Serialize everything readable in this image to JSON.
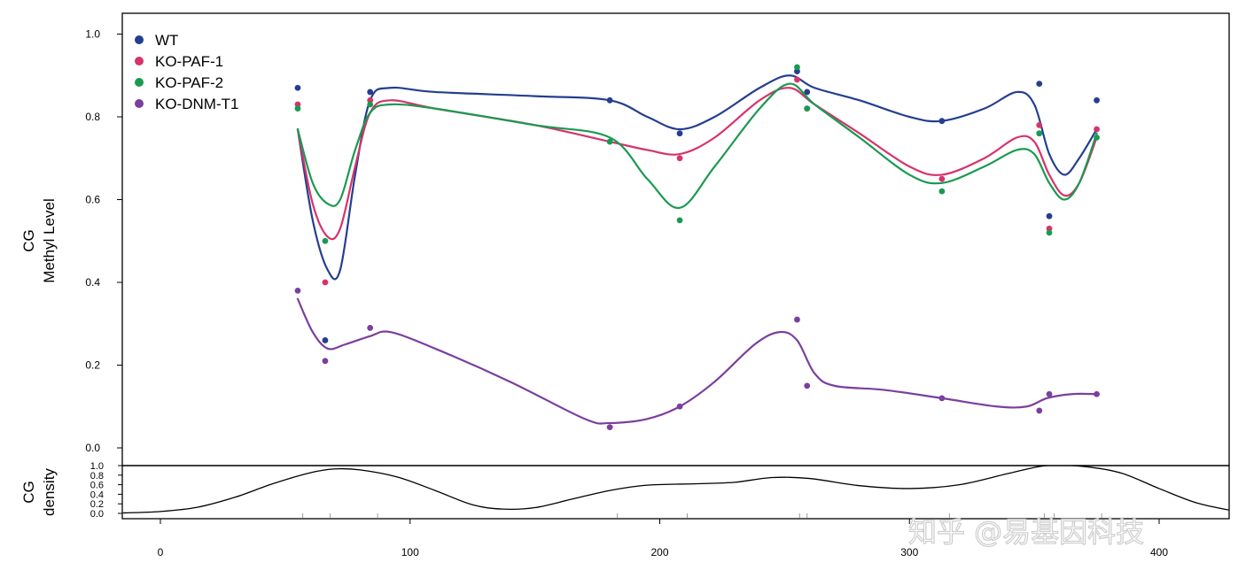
{
  "watermark": "知乎 @易基因科技",
  "chart_data": [
    {
      "type": "scatter",
      "ylabel_line1": "CG",
      "ylabel_line2": "Methyl Level",
      "ylim": [
        0.0,
        1.0
      ],
      "yticks": [
        "0.0",
        "0.2",
        "0.4",
        "0.6",
        "0.8",
        "1.0"
      ],
      "legend_position": "top-left",
      "series": [
        {
          "name": "WT",
          "color": "#243f8f",
          "points": [
            [
              55,
              0.87
            ],
            [
              66,
              0.26
            ],
            [
              84,
              0.86
            ],
            [
              180,
              0.84
            ],
            [
              208,
              0.76
            ],
            [
              255,
              0.91
            ],
            [
              259,
              0.86
            ],
            [
              313,
              0.79
            ],
            [
              352,
              0.88
            ],
            [
              356,
              0.56
            ],
            [
              375,
              0.84
            ]
          ],
          "curve": [
            [
              55,
              0.77
            ],
            [
              61,
              0.55
            ],
            [
              67,
              0.43
            ],
            [
              72,
              0.43
            ],
            [
              78,
              0.66
            ],
            [
              84,
              0.84
            ],
            [
              92,
              0.87
            ],
            [
              110,
              0.86
            ],
            [
              150,
              0.85
            ],
            [
              180,
              0.84
            ],
            [
              195,
              0.8
            ],
            [
              208,
              0.77
            ],
            [
              222,
              0.8
            ],
            [
              240,
              0.87
            ],
            [
              252,
              0.9
            ],
            [
              262,
              0.87
            ],
            [
              280,
              0.84
            ],
            [
              300,
              0.8
            ],
            [
              313,
              0.79
            ],
            [
              330,
              0.82
            ],
            [
              343,
              0.86
            ],
            [
              350,
              0.83
            ],
            [
              356,
              0.71
            ],
            [
              362,
              0.66
            ],
            [
              368,
              0.7
            ],
            [
              375,
              0.77
            ]
          ]
        },
        {
          "name": "KO-PAF-1",
          "color": "#d6336c",
          "points": [
            [
              55,
              0.83
            ],
            [
              66,
              0.4
            ],
            [
              84,
              0.84
            ],
            [
              208,
              0.7
            ],
            [
              255,
              0.89
            ],
            [
              259,
              0.82
            ],
            [
              313,
              0.65
            ],
            [
              352,
              0.78
            ],
            [
              356,
              0.53
            ],
            [
              375,
              0.77
            ]
          ],
          "curve": [
            [
              55,
              0.77
            ],
            [
              61,
              0.59
            ],
            [
              67,
              0.51
            ],
            [
              72,
              0.53
            ],
            [
              78,
              0.68
            ],
            [
              84,
              0.81
            ],
            [
              92,
              0.84
            ],
            [
              110,
              0.82
            ],
            [
              150,
              0.78
            ],
            [
              180,
              0.74
            ],
            [
              195,
              0.72
            ],
            [
              208,
              0.71
            ],
            [
              222,
              0.75
            ],
            [
              240,
              0.84
            ],
            [
              252,
              0.87
            ],
            [
              262,
              0.83
            ],
            [
              280,
              0.76
            ],
            [
              300,
              0.68
            ],
            [
              313,
              0.66
            ],
            [
              330,
              0.7
            ],
            [
              343,
              0.75
            ],
            [
              350,
              0.74
            ],
            [
              356,
              0.66
            ],
            [
              362,
              0.61
            ],
            [
              368,
              0.64
            ],
            [
              375,
              0.75
            ]
          ]
        },
        {
          "name": "KO-PAF-2",
          "color": "#1a9a50",
          "points": [
            [
              55,
              0.82
            ],
            [
              66,
              0.5
            ],
            [
              84,
              0.83
            ],
            [
              180,
              0.74
            ],
            [
              208,
              0.55
            ],
            [
              255,
              0.92
            ],
            [
              259,
              0.82
            ],
            [
              313,
              0.62
            ],
            [
              352,
              0.76
            ],
            [
              356,
              0.52
            ],
            [
              375,
              0.75
            ]
          ],
          "curve": [
            [
              55,
              0.77
            ],
            [
              61,
              0.64
            ],
            [
              67,
              0.59
            ],
            [
              72,
              0.6
            ],
            [
              78,
              0.72
            ],
            [
              84,
              0.81
            ],
            [
              92,
              0.83
            ],
            [
              110,
              0.82
            ],
            [
              150,
              0.78
            ],
            [
              180,
              0.75
            ],
            [
              195,
              0.65
            ],
            [
              208,
              0.58
            ],
            [
              222,
              0.68
            ],
            [
              240,
              0.82
            ],
            [
              252,
              0.88
            ],
            [
              262,
              0.83
            ],
            [
              280,
              0.75
            ],
            [
              300,
              0.66
            ],
            [
              313,
              0.64
            ],
            [
              330,
              0.68
            ],
            [
              343,
              0.72
            ],
            [
              350,
              0.71
            ],
            [
              356,
              0.64
            ],
            [
              362,
              0.6
            ],
            [
              368,
              0.64
            ],
            [
              375,
              0.76
            ]
          ]
        },
        {
          "name": "KO-DNM-T1",
          "color": "#7b3f9e",
          "points": [
            [
              55,
              0.38
            ],
            [
              66,
              0.21
            ],
            [
              84,
              0.29
            ],
            [
              180,
              0.05
            ],
            [
              208,
              0.1
            ],
            [
              255,
              0.31
            ],
            [
              259,
              0.15
            ],
            [
              313,
              0.12
            ],
            [
              352,
              0.09
            ],
            [
              356,
              0.13
            ],
            [
              375,
              0.13
            ]
          ],
          "curve": [
            [
              55,
              0.36
            ],
            [
              61,
              0.28
            ],
            [
              67,
              0.24
            ],
            [
              74,
              0.25
            ],
            [
              84,
              0.27
            ],
            [
              92,
              0.28
            ],
            [
              110,
              0.24
            ],
            [
              140,
              0.16
            ],
            [
              170,
              0.07
            ],
            [
              180,
              0.06
            ],
            [
              195,
              0.07
            ],
            [
              208,
              0.1
            ],
            [
              222,
              0.16
            ],
            [
              238,
              0.25
            ],
            [
              248,
              0.28
            ],
            [
              255,
              0.26
            ],
            [
              262,
              0.18
            ],
            [
              270,
              0.15
            ],
            [
              290,
              0.14
            ],
            [
              313,
              0.12
            ],
            [
              335,
              0.1
            ],
            [
              347,
              0.1
            ],
            [
              355,
              0.12
            ],
            [
              365,
              0.13
            ],
            [
              375,
              0.13
            ]
          ]
        }
      ]
    },
    {
      "type": "area",
      "ylabel_line1": "CG",
      "ylabel_line2": "density",
      "ylim": [
        0.0,
        1.0
      ],
      "yticks": [
        "0.0",
        "0.2",
        "0.4",
        "0.6",
        "0.8",
        "1.0"
      ],
      "xlim": [
        -15,
        430
      ],
      "xticks": [
        "0",
        "100",
        "200",
        "300",
        "400"
      ],
      "density_curve": [
        [
          -15,
          0.01
        ],
        [
          0,
          0.04
        ],
        [
          15,
          0.13
        ],
        [
          30,
          0.34
        ],
        [
          45,
          0.62
        ],
        [
          60,
          0.85
        ],
        [
          70,
          0.93
        ],
        [
          80,
          0.91
        ],
        [
          95,
          0.76
        ],
        [
          110,
          0.48
        ],
        [
          125,
          0.18
        ],
        [
          137,
          0.09
        ],
        [
          150,
          0.12
        ],
        [
          165,
          0.3
        ],
        [
          180,
          0.48
        ],
        [
          195,
          0.59
        ],
        [
          215,
          0.62
        ],
        [
          230,
          0.65
        ],
        [
          245,
          0.75
        ],
        [
          260,
          0.73
        ],
        [
          280,
          0.58
        ],
        [
          300,
          0.52
        ],
        [
          320,
          0.6
        ],
        [
          340,
          0.84
        ],
        [
          355,
          1.0
        ],
        [
          370,
          0.98
        ],
        [
          385,
          0.84
        ],
        [
          400,
          0.52
        ],
        [
          415,
          0.22
        ],
        [
          430,
          0.05
        ]
      ],
      "rug": [
        57,
        68,
        87,
        183,
        211,
        256,
        259,
        316,
        354,
        358,
        377
      ]
    }
  ]
}
